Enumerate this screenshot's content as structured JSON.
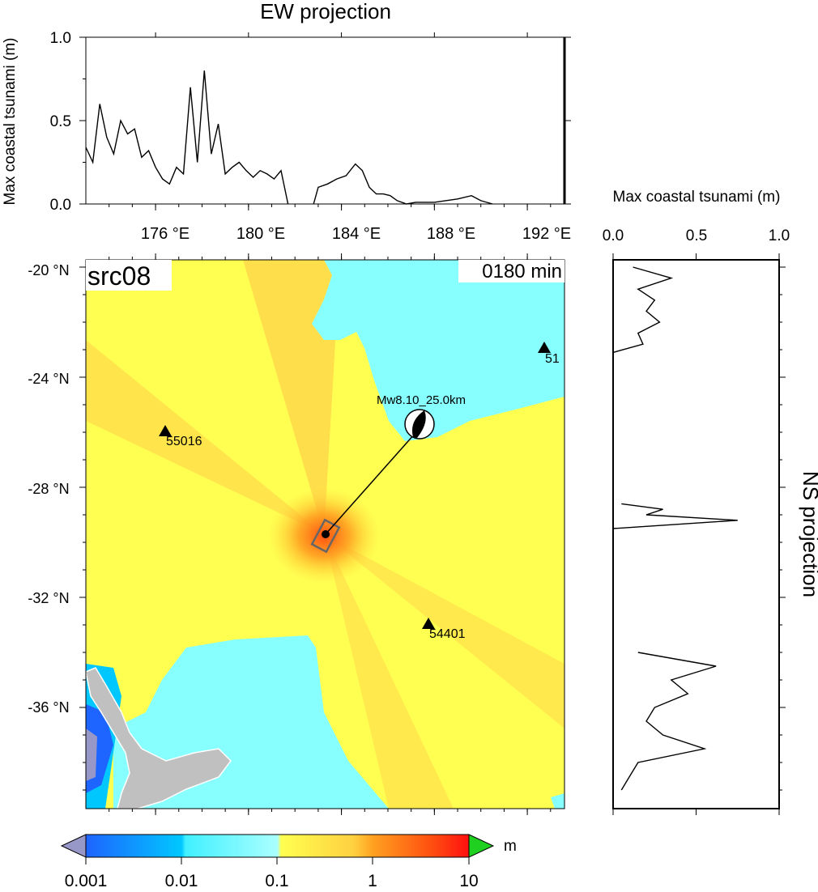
{
  "map": {
    "source_label": "src08",
    "time_label": "0180 min",
    "mechanism_label": "Mw8.10_25.0km",
    "x_ticks": [
      "176 °E",
      "180 °E",
      "184 °E",
      "188 °E",
      "192 °E"
    ],
    "y_ticks": [
      "-20 °N",
      "-24 °N",
      "-28 °N",
      "-32 °N",
      "-36 °N"
    ],
    "stations": [
      {
        "id": "55016",
        "lon": 176.0,
        "lat": -25.9
      },
      {
        "id": "54401",
        "lon": 185.5,
        "lat": -32.9
      },
      {
        "id": "51",
        "lon": 192.0,
        "lat": -22.9
      }
    ]
  },
  "colorbar": {
    "unit": "m",
    "tick_labels": [
      "0.001",
      "0.01",
      "0.1",
      "1",
      "10"
    ],
    "colors": [
      "#1e64ff",
      "#00c8ff",
      "#40f0ff",
      "#aaffff",
      "#ffff50",
      "#ffd040",
      "#ffa020",
      "#ff5010",
      "#ff1010"
    ],
    "low_color": "#9898c8",
    "high_color": "#20d020"
  },
  "ew_panel": {
    "title": "EW projection",
    "ylabel": "Max coastal tsunami (m)",
    "y_ticks": [
      "1.0",
      "0.5",
      "0.0"
    ]
  },
  "ns_panel": {
    "title": "NS projection",
    "xlabel": "Max coastal tsunami (m)",
    "x_ticks": [
      "0.0",
      "0.5",
      "1.0"
    ]
  },
  "chart_data": [
    {
      "type": "line",
      "title": "EW projection",
      "ylabel": "Max coastal tsunami (m)",
      "xlim": [
        173.0,
        193.6
      ],
      "ylim": [
        0,
        1.0
      ],
      "series": [
        {
          "x": [
            173.0,
            173.3,
            173.6,
            173.9,
            174.2,
            174.5,
            174.8,
            175.1,
            175.4,
            175.7,
            176.0,
            176.3,
            176.6,
            176.9,
            177.2,
            177.5,
            177.8,
            178.1,
            178.4,
            178.7,
            179.0,
            179.3,
            179.6,
            179.9,
            180.2,
            180.5,
            180.8,
            181.1,
            181.4,
            181.7
          ],
          "y": [
            0.34,
            0.25,
            0.6,
            0.4,
            0.3,
            0.5,
            0.42,
            0.45,
            0.28,
            0.32,
            0.22,
            0.15,
            0.12,
            0.22,
            0.18,
            0.7,
            0.25,
            0.8,
            0.3,
            0.48,
            0.18,
            0.22,
            0.25,
            0.2,
            0.16,
            0.2,
            0.18,
            0.15,
            0.2,
            0.0
          ]
        },
        {
          "x": [
            182.8,
            183.0,
            183.4,
            183.8,
            184.2,
            184.6,
            184.9,
            185.2,
            185.5,
            185.8,
            186.1,
            186.4,
            186.8,
            187.2,
            188.0,
            189.0,
            189.6,
            190.0,
            190.5
          ],
          "y": [
            0.0,
            0.1,
            0.12,
            0.15,
            0.17,
            0.24,
            0.2,
            0.1,
            0.06,
            0.06,
            0.05,
            0.02,
            0.0,
            0.01,
            0.01,
            0.03,
            0.05,
            0.02,
            0.0
          ]
        }
      ]
    },
    {
      "type": "line",
      "title": "NS projection",
      "xlabel": "Max coastal tsunami (m)",
      "xlim": [
        0,
        1.0
      ],
      "ylim": [
        -39.0,
        -20.0
      ],
      "series": [
        {
          "lat": [
            -20.0,
            -20.4,
            -20.8,
            -21.2,
            -21.6,
            -22.0,
            -22.4,
            -22.8,
            -23.1
          ],
          "value": [
            0.12,
            0.35,
            0.15,
            0.25,
            0.2,
            0.28,
            0.15,
            0.18,
            0.0
          ]
        },
        {
          "lat": [
            -28.6,
            -28.8,
            -29.0,
            -29.2,
            -29.5
          ],
          "value": [
            0.05,
            0.3,
            0.2,
            0.75,
            0.0
          ]
        },
        {
          "lat": [
            -34.0,
            -34.5,
            -35.0,
            -35.5,
            -36.0,
            -36.5,
            -37.0,
            -37.5,
            -38.0,
            -38.5,
            -39.0
          ],
          "value": [
            0.15,
            0.62,
            0.35,
            0.45,
            0.25,
            0.2,
            0.3,
            0.55,
            0.15,
            0.1,
            0.05
          ]
        }
      ]
    }
  ]
}
